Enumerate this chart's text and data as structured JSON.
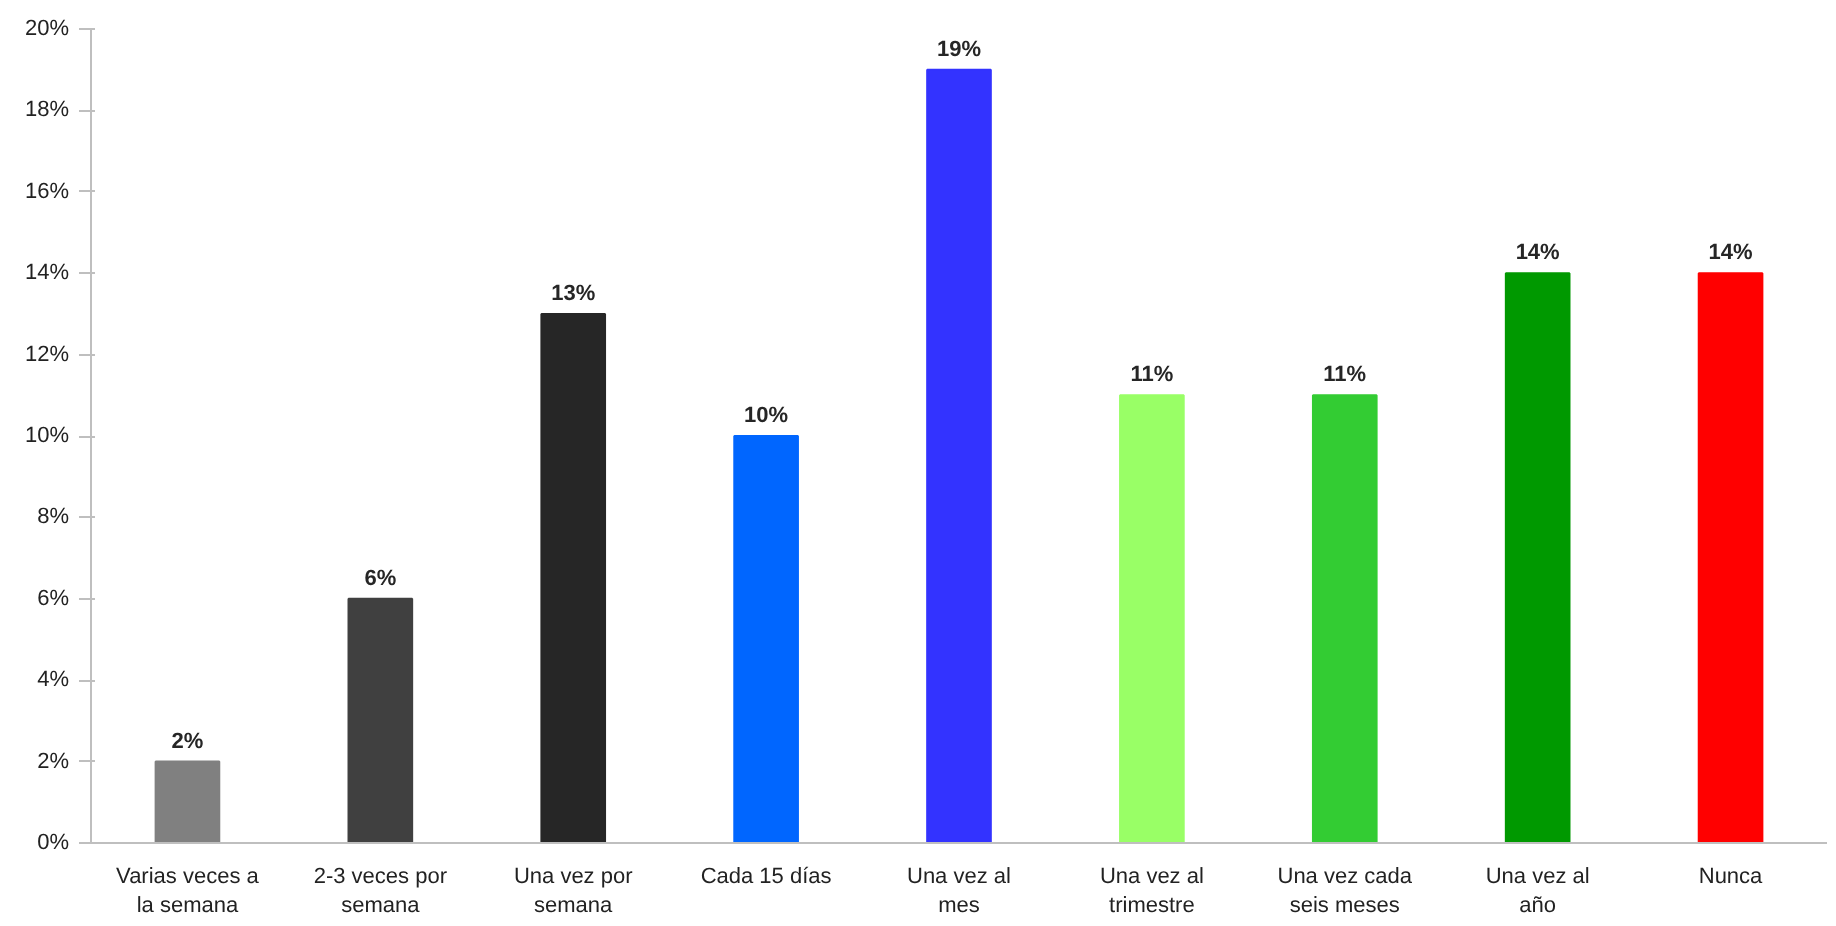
{
  "chart_data": {
    "type": "bar",
    "categories": [
      "Varias veces a\nla semana",
      "2-3 veces por\nsemana",
      "Una vez por\nsemana",
      "Cada 15 días",
      "Una vez al\nmes",
      "Una vez al\ntrimestre",
      "Una vez cada\nseis meses",
      "Una vez al\naño",
      "Nunca"
    ],
    "values": [
      2,
      6,
      13,
      10,
      19,
      11,
      11,
      14,
      14
    ],
    "colors": [
      "#808080",
      "#404040",
      "#262626",
      "#0066ff",
      "#3333ff",
      "#99ff66",
      "#33cc33",
      "#009900",
      "#ff0000"
    ],
    "value_labels": [
      "2%",
      "6%",
      "13%",
      "10%",
      "19%",
      "11%",
      "11%",
      "14%",
      "14%"
    ],
    "ylim": [
      0,
      20
    ],
    "yticks": [
      {
        "value": 0,
        "label": "0%"
      },
      {
        "value": 2,
        "label": "2%"
      },
      {
        "value": 4,
        "label": "4%"
      },
      {
        "value": 6,
        "label": "6%"
      },
      {
        "value": 8,
        "label": "8%"
      },
      {
        "value": 10,
        "label": "10%"
      },
      {
        "value": 12,
        "label": "12%"
      },
      {
        "value": 14,
        "label": "14%"
      },
      {
        "value": 16,
        "label": "16%"
      },
      {
        "value": 18,
        "label": "18%"
      },
      {
        "value": 20,
        "label": "20%"
      }
    ],
    "grid": false
  }
}
